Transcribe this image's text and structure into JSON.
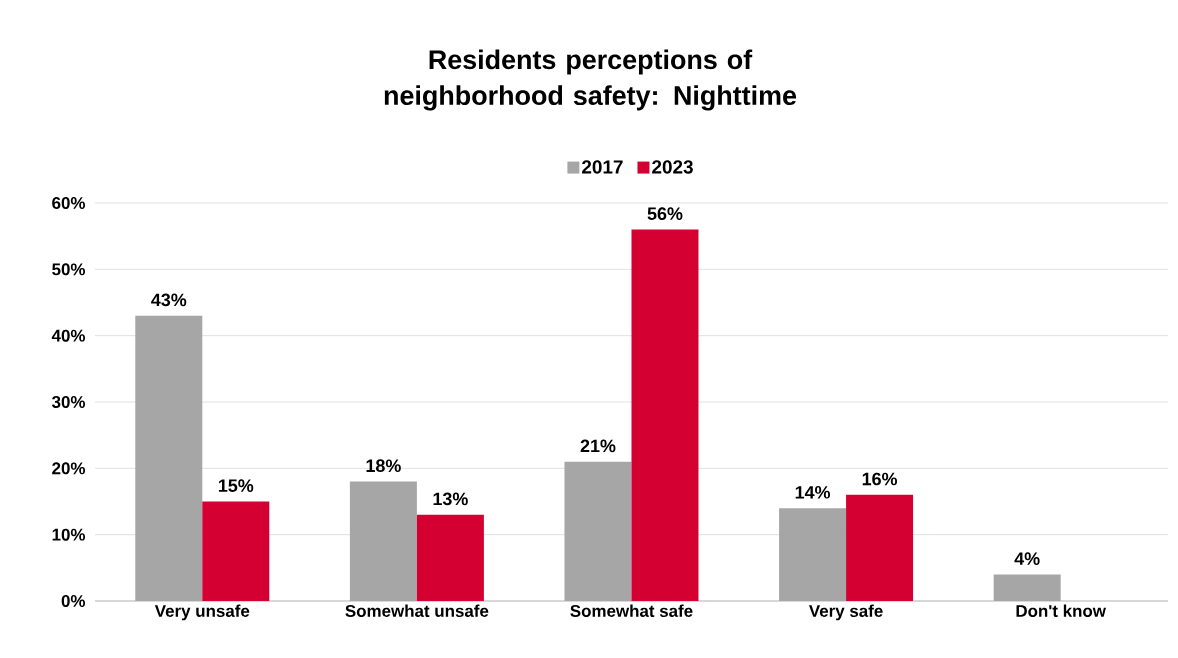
{
  "chart_data": {
    "type": "bar",
    "title": "Residents perceptions of neighborhood safety: Nighttime",
    "categories": [
      "Very unsafe",
      "Somewhat unsafe",
      "Somewhat safe",
      "Very safe",
      "Don't know"
    ],
    "series": [
      {
        "name": "2017",
        "color": "#a6a6a6",
        "values": [
          43,
          18,
          21,
          14,
          4
        ],
        "value_labels": [
          "43%",
          "18%",
          "21%",
          "14%",
          "4%"
        ]
      },
      {
        "name": "2023",
        "color": "#d50032",
        "values": [
          15,
          13,
          56,
          16,
          null
        ],
        "value_labels": [
          "15%",
          "13%",
          "56%",
          "16%",
          null
        ]
      }
    ],
    "ylim": [
      0,
      60
    ],
    "yticks": [
      {
        "value": 0,
        "label": "0%"
      },
      {
        "value": 10,
        "label": "10%"
      },
      {
        "value": 20,
        "label": "20%"
      },
      {
        "value": 30,
        "label": "30%"
      },
      {
        "value": 40,
        "label": "40%"
      },
      {
        "value": 50,
        "label": "50%"
      },
      {
        "value": 60,
        "label": "60%"
      }
    ],
    "grid": "y",
    "legend": "top"
  }
}
